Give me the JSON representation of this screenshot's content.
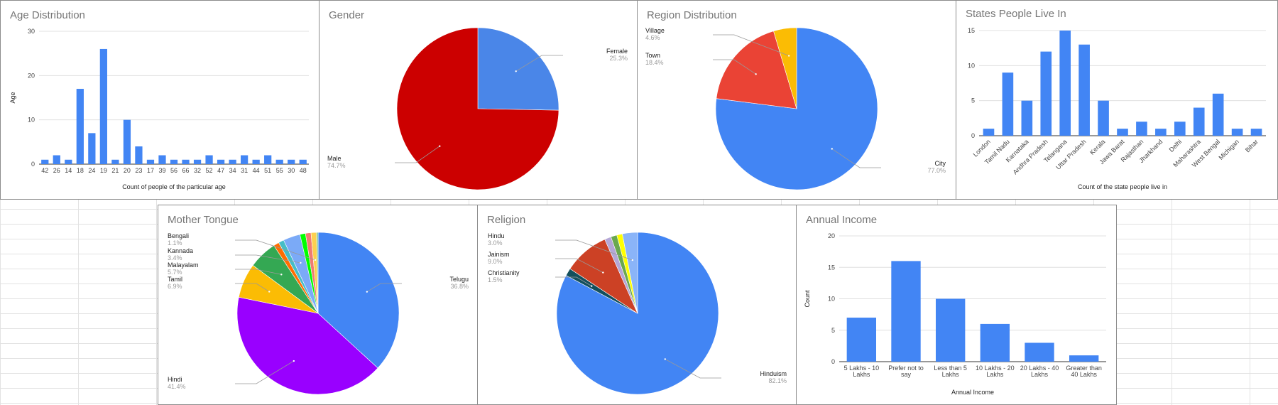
{
  "colors": {
    "blue": "#4285f4",
    "gender_female": "#4a86e8",
    "gender_male": "#cc0000",
    "red": "#ea4335",
    "orange": "#fbbc04",
    "purple": "#9900ff",
    "green": "#34a853",
    "gridline": "#e0e0e0",
    "leader": "#999999"
  },
  "chart_data": [
    {
      "id": "age",
      "type": "bar",
      "title": "Age Distribution",
      "xlabel": "Count of people of the particular age",
      "ylabel": "Age",
      "categories": [
        "42",
        "26",
        "14",
        "18",
        "24",
        "19",
        "21",
        "20",
        "23",
        "17",
        "39",
        "56",
        "66",
        "32",
        "52",
        "47",
        "34",
        "31",
        "44",
        "51",
        "55",
        "30",
        "48"
      ],
      "values": [
        1,
        2,
        1,
        17,
        7,
        26,
        1,
        10,
        4,
        1,
        2,
        1,
        1,
        1,
        2,
        1,
        1,
        2,
        1,
        2,
        1,
        1,
        1
      ],
      "ylim": [
        0,
        30
      ],
      "yticks": [
        0,
        10,
        20,
        30
      ],
      "grid": true
    },
    {
      "id": "gender",
      "type": "pie",
      "title": "Gender",
      "slices": [
        {
          "label": "Female",
          "pct_label": "25.3%",
          "value": 25.3,
          "color": "#4a86e8"
        },
        {
          "label": "Male",
          "pct_label": "74.7%",
          "value": 74.7,
          "color": "#cc0000"
        }
      ]
    },
    {
      "id": "region",
      "type": "pie",
      "title": "Region Distribution",
      "slices": [
        {
          "label": "City",
          "pct_label": "77.0%",
          "value": 77.0,
          "color": "#4285f4"
        },
        {
          "label": "Town",
          "pct_label": "18.4%",
          "value": 18.4,
          "color": "#ea4335"
        },
        {
          "label": "Village",
          "pct_label": "4.6%",
          "value": 4.6,
          "color": "#fbbc04"
        }
      ]
    },
    {
      "id": "states",
      "type": "bar",
      "title": "States People Live In",
      "xlabel": "Count of the state people live in",
      "ylabel": "",
      "categories": [
        "London",
        "Tamil Nadu",
        "Karnataka",
        "Andhra Pradesh",
        "Telangana",
        "Uttar Pradesh",
        "Kerala",
        "Jawa Barat",
        "Rajasthan",
        "Jharkhand",
        "Delhi",
        "Maharashtra",
        "West Bengal",
        "Michigan",
        "Bihar"
      ],
      "values": [
        1,
        9,
        5,
        12,
        15,
        13,
        5,
        1,
        2,
        1,
        2,
        4,
        6,
        1,
        1
      ],
      "ylim": [
        0,
        15
      ],
      "yticks": [
        0,
        5,
        10,
        15
      ],
      "grid": true
    },
    {
      "id": "tongue",
      "type": "pie",
      "title": "Mother Tongue",
      "slices": [
        {
          "label": "Telugu",
          "pct_label": "36.8%",
          "value": 36.8,
          "color": "#4285f4"
        },
        {
          "label": "Hindi",
          "pct_label": "41.4%",
          "value": 41.4,
          "color": "#9900ff"
        },
        {
          "label": "Tamil",
          "pct_label": "6.9%",
          "value": 6.9,
          "color": "#fbbc04"
        },
        {
          "label": "Malayalam",
          "pct_label": "5.7%",
          "value": 5.7,
          "color": "#34a853"
        },
        {
          "label": "",
          "pct_label": "",
          "value": 1.1,
          "color": "#ff6d01"
        },
        {
          "label": "",
          "pct_label": "",
          "value": 1.1,
          "color": "#46bdc6"
        },
        {
          "label": "Kannada",
          "pct_label": "3.4%",
          "value": 3.4,
          "color": "#7baaf7"
        },
        {
          "label": "",
          "pct_label": "",
          "value": 1.1,
          "color": "#00ff00"
        },
        {
          "label": "",
          "pct_label": "",
          "value": 1.1,
          "color": "#f07b72"
        },
        {
          "label": "Bengali",
          "pct_label": "1.1%",
          "value": 1.1,
          "color": "#fcd04f"
        },
        {
          "label": "",
          "pct_label": "",
          "value": 0.3,
          "color": "#71c287"
        }
      ]
    },
    {
      "id": "religion",
      "type": "pie",
      "title": "Religion",
      "slices": [
        {
          "label": "Hinduism",
          "pct_label": "82.1%",
          "value": 82.1,
          "color": "#4285f4"
        },
        {
          "label": "Christianity",
          "pct_label": "1.5%",
          "value": 1.5,
          "color": "#134f5c"
        },
        {
          "label": "Jainism",
          "pct_label": "9.0%",
          "value": 9.0,
          "color": "#cc4125"
        },
        {
          "label": "",
          "pct_label": "",
          "value": 1.3,
          "color": "#b4a7d6"
        },
        {
          "label": "",
          "pct_label": "",
          "value": 1.2,
          "color": "#6aa84f"
        },
        {
          "label": "",
          "pct_label": "",
          "value": 1.1,
          "color": "#ffff00"
        },
        {
          "label": "Hindu",
          "pct_label": "3.0%",
          "value": 3.0,
          "color": "#8ab4f8"
        }
      ]
    },
    {
      "id": "income",
      "type": "bar",
      "title": "Annual Income",
      "xlabel": "Annual Income",
      "ylabel": "Count",
      "categories": [
        [
          "5 Lakhs - 10",
          "Lakhs"
        ],
        [
          "Prefer not to",
          "say"
        ],
        [
          "Less than 5",
          "Lakhs"
        ],
        [
          "10 Lakhs - 20",
          "Lakhs"
        ],
        [
          "20 Lakhs - 40",
          "Lakhs"
        ],
        [
          "Greater than",
          "40 Lakhs"
        ]
      ],
      "values": [
        7,
        16,
        10,
        6,
        3,
        1
      ],
      "ylim": [
        0,
        20
      ],
      "yticks": [
        0,
        5,
        10,
        15,
        20
      ],
      "grid": true
    }
  ]
}
